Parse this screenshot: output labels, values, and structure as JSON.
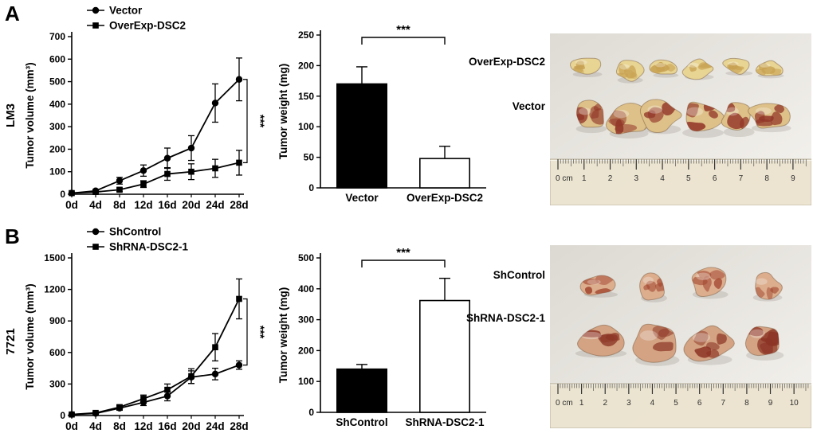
{
  "figure": {
    "panels": [
      {
        "label": "A",
        "cell_line": "LM3",
        "photo": {
          "row_labels": [
            "OverExp-DSC2",
            "Vector"
          ],
          "ruler_labels": [
            "0 cm",
            "1",
            "2",
            "3",
            "4",
            "5",
            "6",
            "7",
            "8",
            "9"
          ],
          "tumor_counts": [
            6,
            6
          ],
          "row_colors": [
            [
              "#e8d493",
              "#c8a253"
            ],
            [
              "#dec189",
              "#93382a"
            ]
          ],
          "bg": [
            "#dedbd4",
            "#f5f3ef"
          ]
        }
      },
      {
        "label": "B",
        "cell_line": "7721",
        "photo": {
          "row_labels": [
            "ShControl",
            "ShRNA-DSC2-1"
          ],
          "ruler_labels": [
            "0 cm",
            "1",
            "2",
            "3",
            "4",
            "5",
            "6",
            "7",
            "8",
            "9",
            "10"
          ],
          "tumor_counts": [
            4,
            4
          ],
          "row_colors": [
            [
              "#dcae8e",
              "#a34730"
            ],
            [
              "#d3a383",
              "#8c3425"
            ]
          ],
          "bg": [
            "#dcd9d2",
            "#f4f2ee"
          ]
        }
      }
    ]
  },
  "chart_data": [
    {
      "id": "lineA",
      "type": "line",
      "panel": "A",
      "title": "",
      "xlabel": "",
      "ylabel": "Tumor volume (mm³)",
      "categories": [
        "0d",
        "4d",
        "8d",
        "12d",
        "16d",
        "20d",
        "24d",
        "28d"
      ],
      "ylim": [
        0,
        700
      ],
      "yticks": [
        0,
        100,
        200,
        300,
        400,
        500,
        600,
        700
      ],
      "legend_position": "top-left",
      "significance": "***",
      "series": [
        {
          "name": "Vector",
          "marker": "circle",
          "values": [
            5,
            15,
            60,
            105,
            160,
            205,
            405,
            510
          ],
          "errors": [
            3,
            6,
            15,
            25,
            45,
            55,
            85,
            95
          ]
        },
        {
          "name": "OverExp-DSC2",
          "marker": "square",
          "values": [
            5,
            10,
            20,
            45,
            90,
            100,
            115,
            140
          ],
          "errors": [
            2,
            4,
            8,
            15,
            28,
            35,
            40,
            55
          ]
        }
      ]
    },
    {
      "id": "barA",
      "type": "bar",
      "panel": "A",
      "title": "",
      "xlabel": "",
      "ylabel": "Tumor weight (mg)",
      "categories": [
        "Vector",
        "OverExp-DSC2"
      ],
      "values": [
        170,
        48
      ],
      "errors": [
        28,
        20
      ],
      "bar_fills": [
        "#000000",
        "#ffffff"
      ],
      "ylim": [
        0,
        250
      ],
      "yticks": [
        0,
        50,
        100,
        150,
        200,
        250
      ],
      "significance": "***"
    },
    {
      "id": "lineB",
      "type": "line",
      "panel": "B",
      "title": "",
      "xlabel": "",
      "ylabel": "Tumor volume (mm³)",
      "categories": [
        "0d",
        "4d",
        "8d",
        "12d",
        "16d",
        "20d",
        "24d",
        "28d"
      ],
      "ylim": [
        0,
        1500
      ],
      "yticks": [
        0,
        300,
        600,
        900,
        1200,
        1500
      ],
      "legend_position": "top-left",
      "significance": "***",
      "series": [
        {
          "name": "ShControl",
          "marker": "circle",
          "values": [
            10,
            20,
            70,
            125,
            185,
            365,
            395,
            480
          ],
          "errors": [
            5,
            8,
            20,
            30,
            45,
            60,
            55,
            40
          ]
        },
        {
          "name": "ShRNA-DSC2-1",
          "marker": "square",
          "values": [
            10,
            25,
            80,
            160,
            245,
            375,
            650,
            1110
          ],
          "errors": [
            5,
            10,
            20,
            35,
            55,
            70,
            130,
            190
          ]
        }
      ]
    },
    {
      "id": "barB",
      "type": "bar",
      "panel": "B",
      "title": "",
      "xlabel": "",
      "ylabel": "Tumor weight (mg)",
      "categories": [
        "ShControl",
        "ShRNA-DSC2-1"
      ],
      "values": [
        140,
        362
      ],
      "errors": [
        15,
        72
      ],
      "bar_fills": [
        "#000000",
        "#ffffff"
      ],
      "ylim": [
        0,
        500
      ],
      "yticks": [
        0,
        100,
        200,
        300,
        400,
        500
      ],
      "significance": "***"
    }
  ]
}
